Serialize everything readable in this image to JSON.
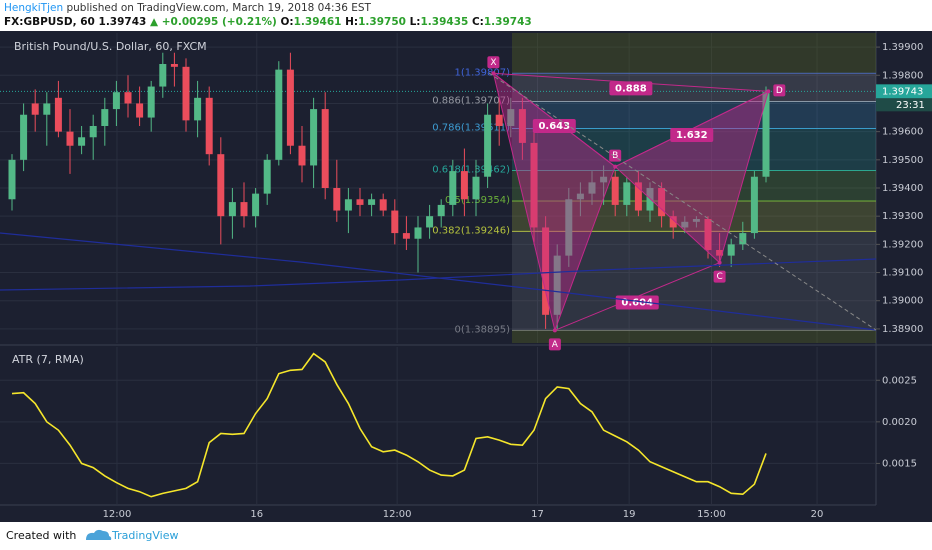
{
  "header": {
    "author": "HengkiTjen",
    "published": "published on TradingView.com, March 19, 2018 04:36 EST",
    "symbol": "FX:GBPUSD, 60",
    "price": "1.39743",
    "arrow": "▲",
    "change": "+0.00295 (+0.21%)",
    "open_label": "O:",
    "open": "1.39461",
    "high_label": "H:",
    "high": "1.39750",
    "low_label": "L:",
    "low": "1.39435",
    "close_label": "C:",
    "close": "1.39743"
  },
  "chart_data": [
    {
      "type": "candlestick",
      "title": "British Pound/U.S. Dollar, 60, FXCM",
      "open": [
        1.3936,
        1.395,
        1.397,
        1.3966,
        1.3972,
        1.396,
        1.3955,
        1.3958,
        1.3962,
        1.3968,
        1.3974,
        1.397,
        1.3965,
        1.3976,
        1.3984,
        1.3983,
        1.3964,
        1.3972,
        1.3952,
        1.393,
        1.3935,
        1.393,
        1.3938,
        1.395,
        1.3982,
        1.3955,
        1.3948,
        1.3968,
        1.394,
        1.3932,
        1.3936,
        1.3934,
        1.3936,
        1.3932,
        1.3924,
        1.3922,
        1.3926,
        1.393,
        1.3934,
        1.3946,
        1.3936,
        1.3944,
        1.3966,
        1.3962,
        1.3968,
        1.3956,
        1.3926,
        1.3895,
        1.3916,
        1.3936,
        1.3938,
        1.3942,
        1.3944,
        1.3934,
        1.3942,
        1.3932,
        1.394,
        1.393,
        1.3926,
        1.3928,
        1.3929,
        1.3918,
        1.3916,
        1.392,
        1.3924,
        1.3944
      ],
      "high": [
        1.3952,
        1.397,
        1.3975,
        1.3974,
        1.3978,
        1.3968,
        1.3962,
        1.3966,
        1.3972,
        1.3978,
        1.398,
        1.3976,
        1.3978,
        1.3988,
        1.3988,
        1.3986,
        1.3978,
        1.3976,
        1.3958,
        1.394,
        1.3942,
        1.394,
        1.3952,
        1.3985,
        1.3988,
        1.3962,
        1.3972,
        1.3974,
        1.395,
        1.394,
        1.394,
        1.3938,
        1.3938,
        1.3936,
        1.393,
        1.393,
        1.3934,
        1.3936,
        1.395,
        1.3954,
        1.395,
        1.397,
        1.3972,
        1.3972,
        1.3972,
        1.3962,
        1.393,
        1.392,
        1.394,
        1.3942,
        1.3946,
        1.3948,
        1.3946,
        1.3944,
        1.3946,
        1.3942,
        1.3942,
        1.3932,
        1.393,
        1.393,
        1.393,
        1.3924,
        1.3922,
        1.3928,
        1.3946,
        1.3976
      ],
      "low": [
        1.3932,
        1.3946,
        1.396,
        1.3955,
        1.3958,
        1.3945,
        1.3952,
        1.395,
        1.3955,
        1.3962,
        1.3965,
        1.3962,
        1.396,
        1.3972,
        1.3976,
        1.396,
        1.3958,
        1.3948,
        1.392,
        1.3922,
        1.3926,
        1.3926,
        1.3934,
        1.3948,
        1.3952,
        1.3942,
        1.394,
        1.3936,
        1.3928,
        1.3924,
        1.393,
        1.393,
        1.393,
        1.392,
        1.3918,
        1.391,
        1.3922,
        1.3926,
        1.393,
        1.393,
        1.393,
        1.394,
        1.3955,
        1.3958,
        1.395,
        1.392,
        1.389,
        1.389,
        1.3912,
        1.393,
        1.3934,
        1.3934,
        1.393,
        1.393,
        1.393,
        1.3928,
        1.3926,
        1.3922,
        1.3924,
        1.3926,
        1.3915,
        1.3912,
        1.3912,
        1.3918,
        1.3922,
        1.3942
      ],
      "close": [
        1.395,
        1.3966,
        1.3966,
        1.397,
        1.396,
        1.3955,
        1.3958,
        1.3962,
        1.3968,
        1.3974,
        1.397,
        1.3965,
        1.3976,
        1.3984,
        1.3983,
        1.3964,
        1.3972,
        1.3952,
        1.393,
        1.3935,
        1.393,
        1.3938,
        1.395,
        1.3982,
        1.3955,
        1.3948,
        1.3968,
        1.394,
        1.3932,
        1.3936,
        1.3934,
        1.3936,
        1.3932,
        1.3924,
        1.3922,
        1.3926,
        1.393,
        1.3934,
        1.3946,
        1.3936,
        1.3944,
        1.3966,
        1.3962,
        1.3968,
        1.3956,
        1.3926,
        1.3895,
        1.3916,
        1.3936,
        1.3938,
        1.3942,
        1.3944,
        1.3934,
        1.3942,
        1.3932,
        1.394,
        1.393,
        1.3926,
        1.3928,
        1.3929,
        1.3918,
        1.3916,
        1.392,
        1.3924,
        1.3944,
        1.3974
      ],
      "up_color": "#53b987",
      "down_color": "#eb4d5c",
      "ylim": [
        1.3885,
        1.3995
      ],
      "yticks": [
        {
          "value": 1.389,
          "label": "1.38900"
        },
        {
          "value": 1.39,
          "label": "1.39000"
        },
        {
          "value": 1.391,
          "label": "1.39100"
        },
        {
          "value": 1.392,
          "label": "1.39200"
        },
        {
          "value": 1.393,
          "label": "1.39300"
        },
        {
          "value": 1.394,
          "label": "1.39400"
        },
        {
          "value": 1.395,
          "label": "1.39500"
        },
        {
          "value": 1.396,
          "label": "1.39600"
        },
        {
          "value": 1.397,
          "label": "1.39700"
        },
        {
          "value": 1.398,
          "label": "1.39800"
        },
        {
          "value": 1.399,
          "label": "1.39900"
        }
      ],
      "xticks": [
        {
          "value": 9.05,
          "label": "12:00"
        },
        {
          "value": 21.1,
          "label": "16"
        },
        {
          "value": 33.2,
          "label": "12:00"
        },
        {
          "value": 45.3,
          "label": "17"
        },
        {
          "value": 53.2,
          "label": "19"
        },
        {
          "value": 60.3,
          "label": "15:00"
        },
        {
          "value": 69.4,
          "label": "20"
        }
      ],
      "grid": true,
      "last_price": {
        "value": 1.39743,
        "label": "1.39743"
      },
      "countdown": "23:31",
      "fib_levels": [
        {
          "label": "1(1.39807)",
          "price": 1.39807,
          "color": "#3f63d8"
        },
        {
          "label": "0.886(1.39707)",
          "price": 1.39707,
          "color": "#9598a1"
        },
        {
          "label": "0.786(1.39611)",
          "price": 1.39611,
          "color": "#3d9bd1"
        },
        {
          "label": "0.618(1.39462)",
          "price": 1.39462,
          "color": "#26a69a"
        },
        {
          "label": "0.5(1.39354)",
          "price": 1.39354,
          "color": "#6bb03a"
        },
        {
          "label": "0.382(1.39246)",
          "price": 1.39246,
          "color": "#b5c33d"
        },
        {
          "label": "0(1.38895)",
          "price": 1.38895,
          "color": "#787b86"
        }
      ],
      "pattern": {
        "color": "#c2298a",
        "points": [
          {
            "label": "X",
            "index": 41.5,
            "price": 1.39807
          },
          {
            "label": "A",
            "index": 46.8,
            "price": 1.38895
          },
          {
            "label": "B",
            "index": 52,
            "price": 1.39476
          },
          {
            "label": "C",
            "index": 61,
            "price": 1.39135
          },
          {
            "label": "D",
            "index": 65.2,
            "price": 1.39743
          }
        ],
        "ratios": [
          {
            "label": "0.888"
          },
          {
            "label": "0.643"
          },
          {
            "label": "1.632"
          },
          {
            "label": "0.604"
          }
        ]
      }
    },
    {
      "type": "line",
      "title": "ATR (7, RMA)",
      "color": "#f5e62b",
      "values": [
        0.00234,
        0.00235,
        0.00222,
        0.002,
        0.0019,
        0.00172,
        0.0015,
        0.00145,
        0.00135,
        0.00127,
        0.0012,
        0.00116,
        0.0011,
        0.00114,
        0.00117,
        0.0012,
        0.00128,
        0.00175,
        0.00186,
        0.00185,
        0.00186,
        0.0021,
        0.00228,
        0.00258,
        0.00262,
        0.00263,
        0.00282,
        0.00272,
        0.00245,
        0.00222,
        0.00192,
        0.0017,
        0.00164,
        0.00166,
        0.0016,
        0.00152,
        0.00142,
        0.00136,
        0.00135,
        0.00142,
        0.0018,
        0.00182,
        0.00178,
        0.00173,
        0.00172,
        0.0019,
        0.00228,
        0.00242,
        0.0024,
        0.00222,
        0.00212,
        0.0019,
        0.00183,
        0.00176,
        0.00166,
        0.00152,
        0.00146,
        0.0014,
        0.00134,
        0.00128,
        0.00128,
        0.00122,
        0.00114,
        0.00113,
        0.00125,
        0.00162
      ],
      "ylim": [
        0.001,
        0.0029
      ],
      "yticks": [
        {
          "value": 0.0015,
          "label": "0.0015"
        },
        {
          "value": 0.002,
          "label": "0.0020"
        },
        {
          "value": 0.0025,
          "label": "0.0025"
        }
      ]
    }
  ],
  "footer": {
    "created": "Created with",
    "brand": "TradingView"
  }
}
